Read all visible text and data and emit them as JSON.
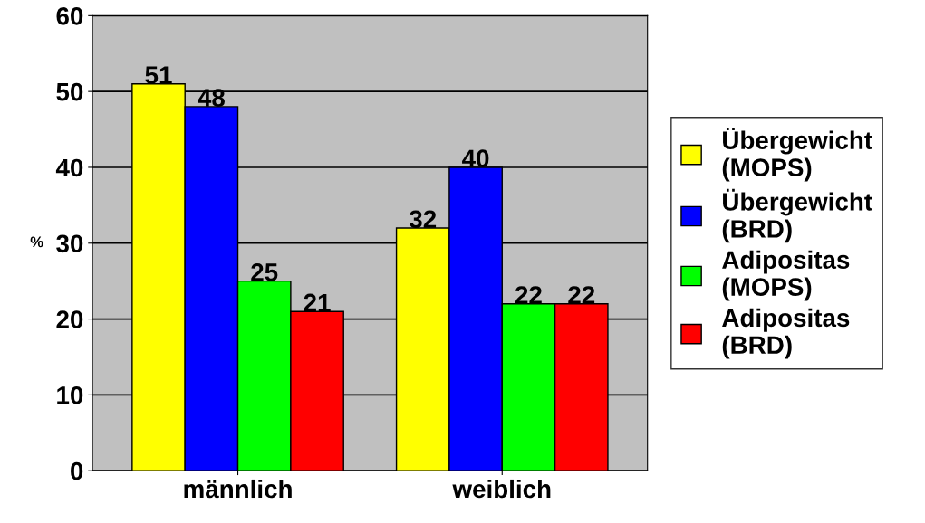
{
  "chart_data": {
    "type": "bar",
    "ylabel": "%",
    "categories": [
      "männlich",
      "weiblich"
    ],
    "series": [
      {
        "name": "Übergewicht\n(MOPS)",
        "color": "#ffff00",
        "values": [
          51,
          32
        ]
      },
      {
        "name": "Übergewicht\n(BRD)",
        "color": "#0000ff",
        "values": [
          48,
          40
        ]
      },
      {
        "name": "Adipositas\n(MOPS)",
        "color": "#00ff00",
        "values": [
          25,
          22
        ]
      },
      {
        "name": "Adipositas\n(BRD)",
        "color": "#ff0000",
        "values": [
          21,
          22
        ]
      }
    ],
    "ylim": [
      0,
      60
    ],
    "yticks": [
      0,
      10,
      20,
      30,
      40,
      50,
      60
    ],
    "grid": "y",
    "legend": "right",
    "data_labels": true
  }
}
